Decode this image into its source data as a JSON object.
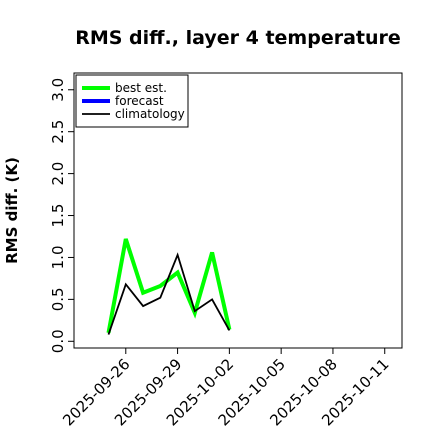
{
  "chart_data": {
    "type": "line",
    "title": "RMS diff., layer 4 temperature",
    "xlabel": "",
    "ylabel": "RMS diff. (K)",
    "x_range": [
      "2025-09-23",
      "2025-10-12"
    ],
    "ylim": [
      -0.08,
      3.2
    ],
    "y_ticks": [
      0.0,
      0.5,
      1.0,
      1.5,
      2.0,
      2.5,
      3.0
    ],
    "y_tick_labels": [
      "0.0",
      "0.5",
      "1.0",
      "1.5",
      "2.0",
      "2.5",
      "3.0"
    ],
    "x_ticks": [
      "2025-09-26",
      "2025-09-29",
      "2025-10-02",
      "2025-10-05",
      "2025-10-08",
      "2025-10-11"
    ],
    "highlight_tick": "2025-10-02",
    "highlight_color": "#228b22",
    "legend": {
      "placement": "top-left"
    },
    "series": [
      {
        "name": "best est.",
        "color": "#00ff00",
        "width": 4,
        "x": [
          "2025-09-25",
          "2025-09-26",
          "2025-09-27",
          "2025-09-28",
          "2025-09-29",
          "2025-09-30",
          "2025-10-01",
          "2025-10-02"
        ],
        "y": [
          0.1,
          1.22,
          0.58,
          0.66,
          0.82,
          0.34,
          1.06,
          0.14
        ]
      },
      {
        "name": "forecast",
        "color": "#0000ff",
        "width": 4,
        "x": [],
        "y": []
      },
      {
        "name": "climatology",
        "color": "#000000",
        "width": 1.8,
        "x": [
          "2025-09-25",
          "2025-09-26",
          "2025-09-27",
          "2025-09-28",
          "2025-09-29",
          "2025-09-30",
          "2025-10-01",
          "2025-10-02"
        ],
        "y": [
          0.08,
          0.68,
          0.42,
          0.52,
          1.03,
          0.36,
          0.5,
          0.13
        ]
      }
    ]
  }
}
